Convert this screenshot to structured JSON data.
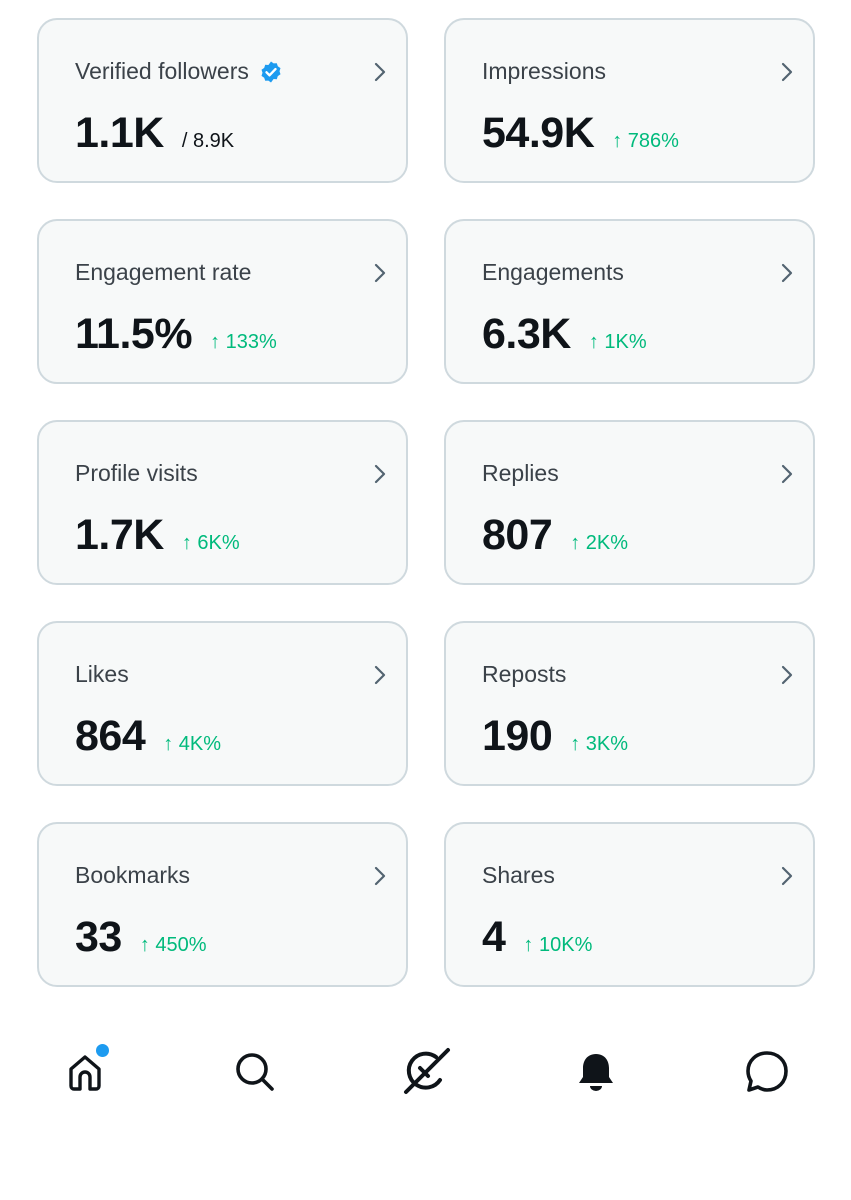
{
  "metrics": [
    {
      "label": "Verified followers",
      "value": "1.1K",
      "sub": "/ 8.9K",
      "change": "",
      "verified": true
    },
    {
      "label": "Impressions",
      "value": "54.9K",
      "sub": "",
      "change": "↑ 786%"
    },
    {
      "label": "Engagement rate",
      "value": "11.5%",
      "sub": "",
      "change": "↑ 133%"
    },
    {
      "label": "Engagements",
      "value": "6.3K",
      "sub": "",
      "change": "↑ 1K%"
    },
    {
      "label": "Profile visits",
      "value": "1.7K",
      "sub": "",
      "change": "↑ 6K%"
    },
    {
      "label": "Replies",
      "value": "807",
      "sub": "",
      "change": "↑ 2K%"
    },
    {
      "label": "Likes",
      "value": "864",
      "sub": "",
      "change": "↑ 4K%"
    },
    {
      "label": "Reposts",
      "value": "190",
      "sub": "",
      "change": "↑ 3K%"
    },
    {
      "label": "Bookmarks",
      "value": "33",
      "sub": "",
      "change": "↑ 450%"
    },
    {
      "label": "Shares",
      "value": "4",
      "sub": "",
      "change": "↑ 10K%"
    }
  ],
  "nav": {
    "items": [
      {
        "icon": "home-icon",
        "has_notification_dot": true
      },
      {
        "icon": "search-icon"
      },
      {
        "icon": "grok-icon"
      },
      {
        "icon": "notifications-icon"
      },
      {
        "icon": "messages-icon"
      }
    ]
  },
  "colors": {
    "card_bg": "#f7f9f9",
    "card_border": "#cfd9de",
    "positive": "#00ba7c",
    "accent": "#1d9bf0",
    "text": "#0f1419",
    "label": "#3b4249"
  }
}
